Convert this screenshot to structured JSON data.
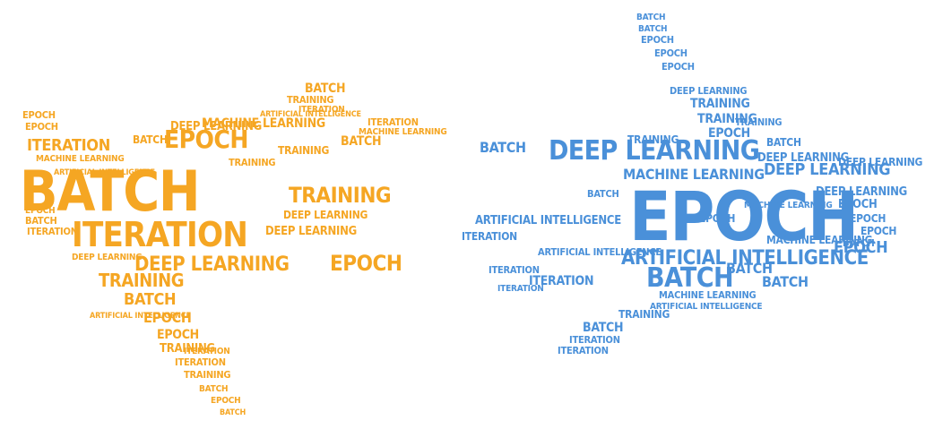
{
  "colors": {
    "left": "#f5a623",
    "right": "#4a90d9"
  },
  "left_cloud": [
    "BATCH",
    "BATCH",
    "BATCH",
    "BATCH",
    "BATCH",
    "BATCH",
    "BATCH",
    "BATCH",
    "ITERATION",
    "ITERATION",
    "ITERATION",
    "ITERATION",
    "ITERATION",
    "ITERATION",
    "ITERATION",
    "EPOCH",
    "EPOCH",
    "EPOCH",
    "EPOCH",
    "EPOCH",
    "EPOCH",
    "EPOCH",
    "EPOCH",
    "TRAINING",
    "TRAINING",
    "TRAINING",
    "TRAINING",
    "TRAINING",
    "TRAINING",
    "TRAINING",
    "DEEP LEARNING",
    "DEEP LEARNING",
    "DEEP LEARNING",
    "DEEP LEARNING",
    "DEEP LEARNING",
    "MACHINE LEARNING",
    "MACHINE LEARNING",
    "MACHINE LEARNING",
    "ARTIFICIAL INTELLIGENCE",
    "ARTIFICIAL INTELLIGENCE",
    "ARTIFICIAL INTELLIGENCE"
  ],
  "right_cloud": [
    "EPOCH",
    "EPOCH",
    "EPOCH",
    "EPOCH",
    "EPOCH",
    "EPOCH",
    "EPOCH",
    "EPOCH",
    "EPOCH",
    "EPOCH",
    "BATCH",
    "BATCH",
    "BATCH",
    "BATCH",
    "BATCH",
    "BATCH",
    "BATCH",
    "BATCH",
    "BATCH",
    "BATCH",
    "DEEP LEARNING",
    "DEEP LEARNING",
    "DEEP LEARNING",
    "DEEP LEARNING",
    "DEEP LEARNING",
    "DEEP LEARNING",
    "TRAINING",
    "TRAINING",
    "TRAINING",
    "TRAINING",
    "TRAINING",
    "ITERATION",
    "ITERATION",
    "ITERATION",
    "ITERATION",
    "ITERATION",
    "ITERATION",
    "MACHINE LEARNING",
    "MACHINE LEARNING",
    "MACHINE LEARNING",
    "MACHINE LEARNING",
    "ARTIFICIAL INTELLIGENCE",
    "ARTIFICIAL INTELLIGENCE",
    "ARTIFICIAL INTELLIGENCE",
    "ARTIFICIAL INTELLIGENCE"
  ]
}
